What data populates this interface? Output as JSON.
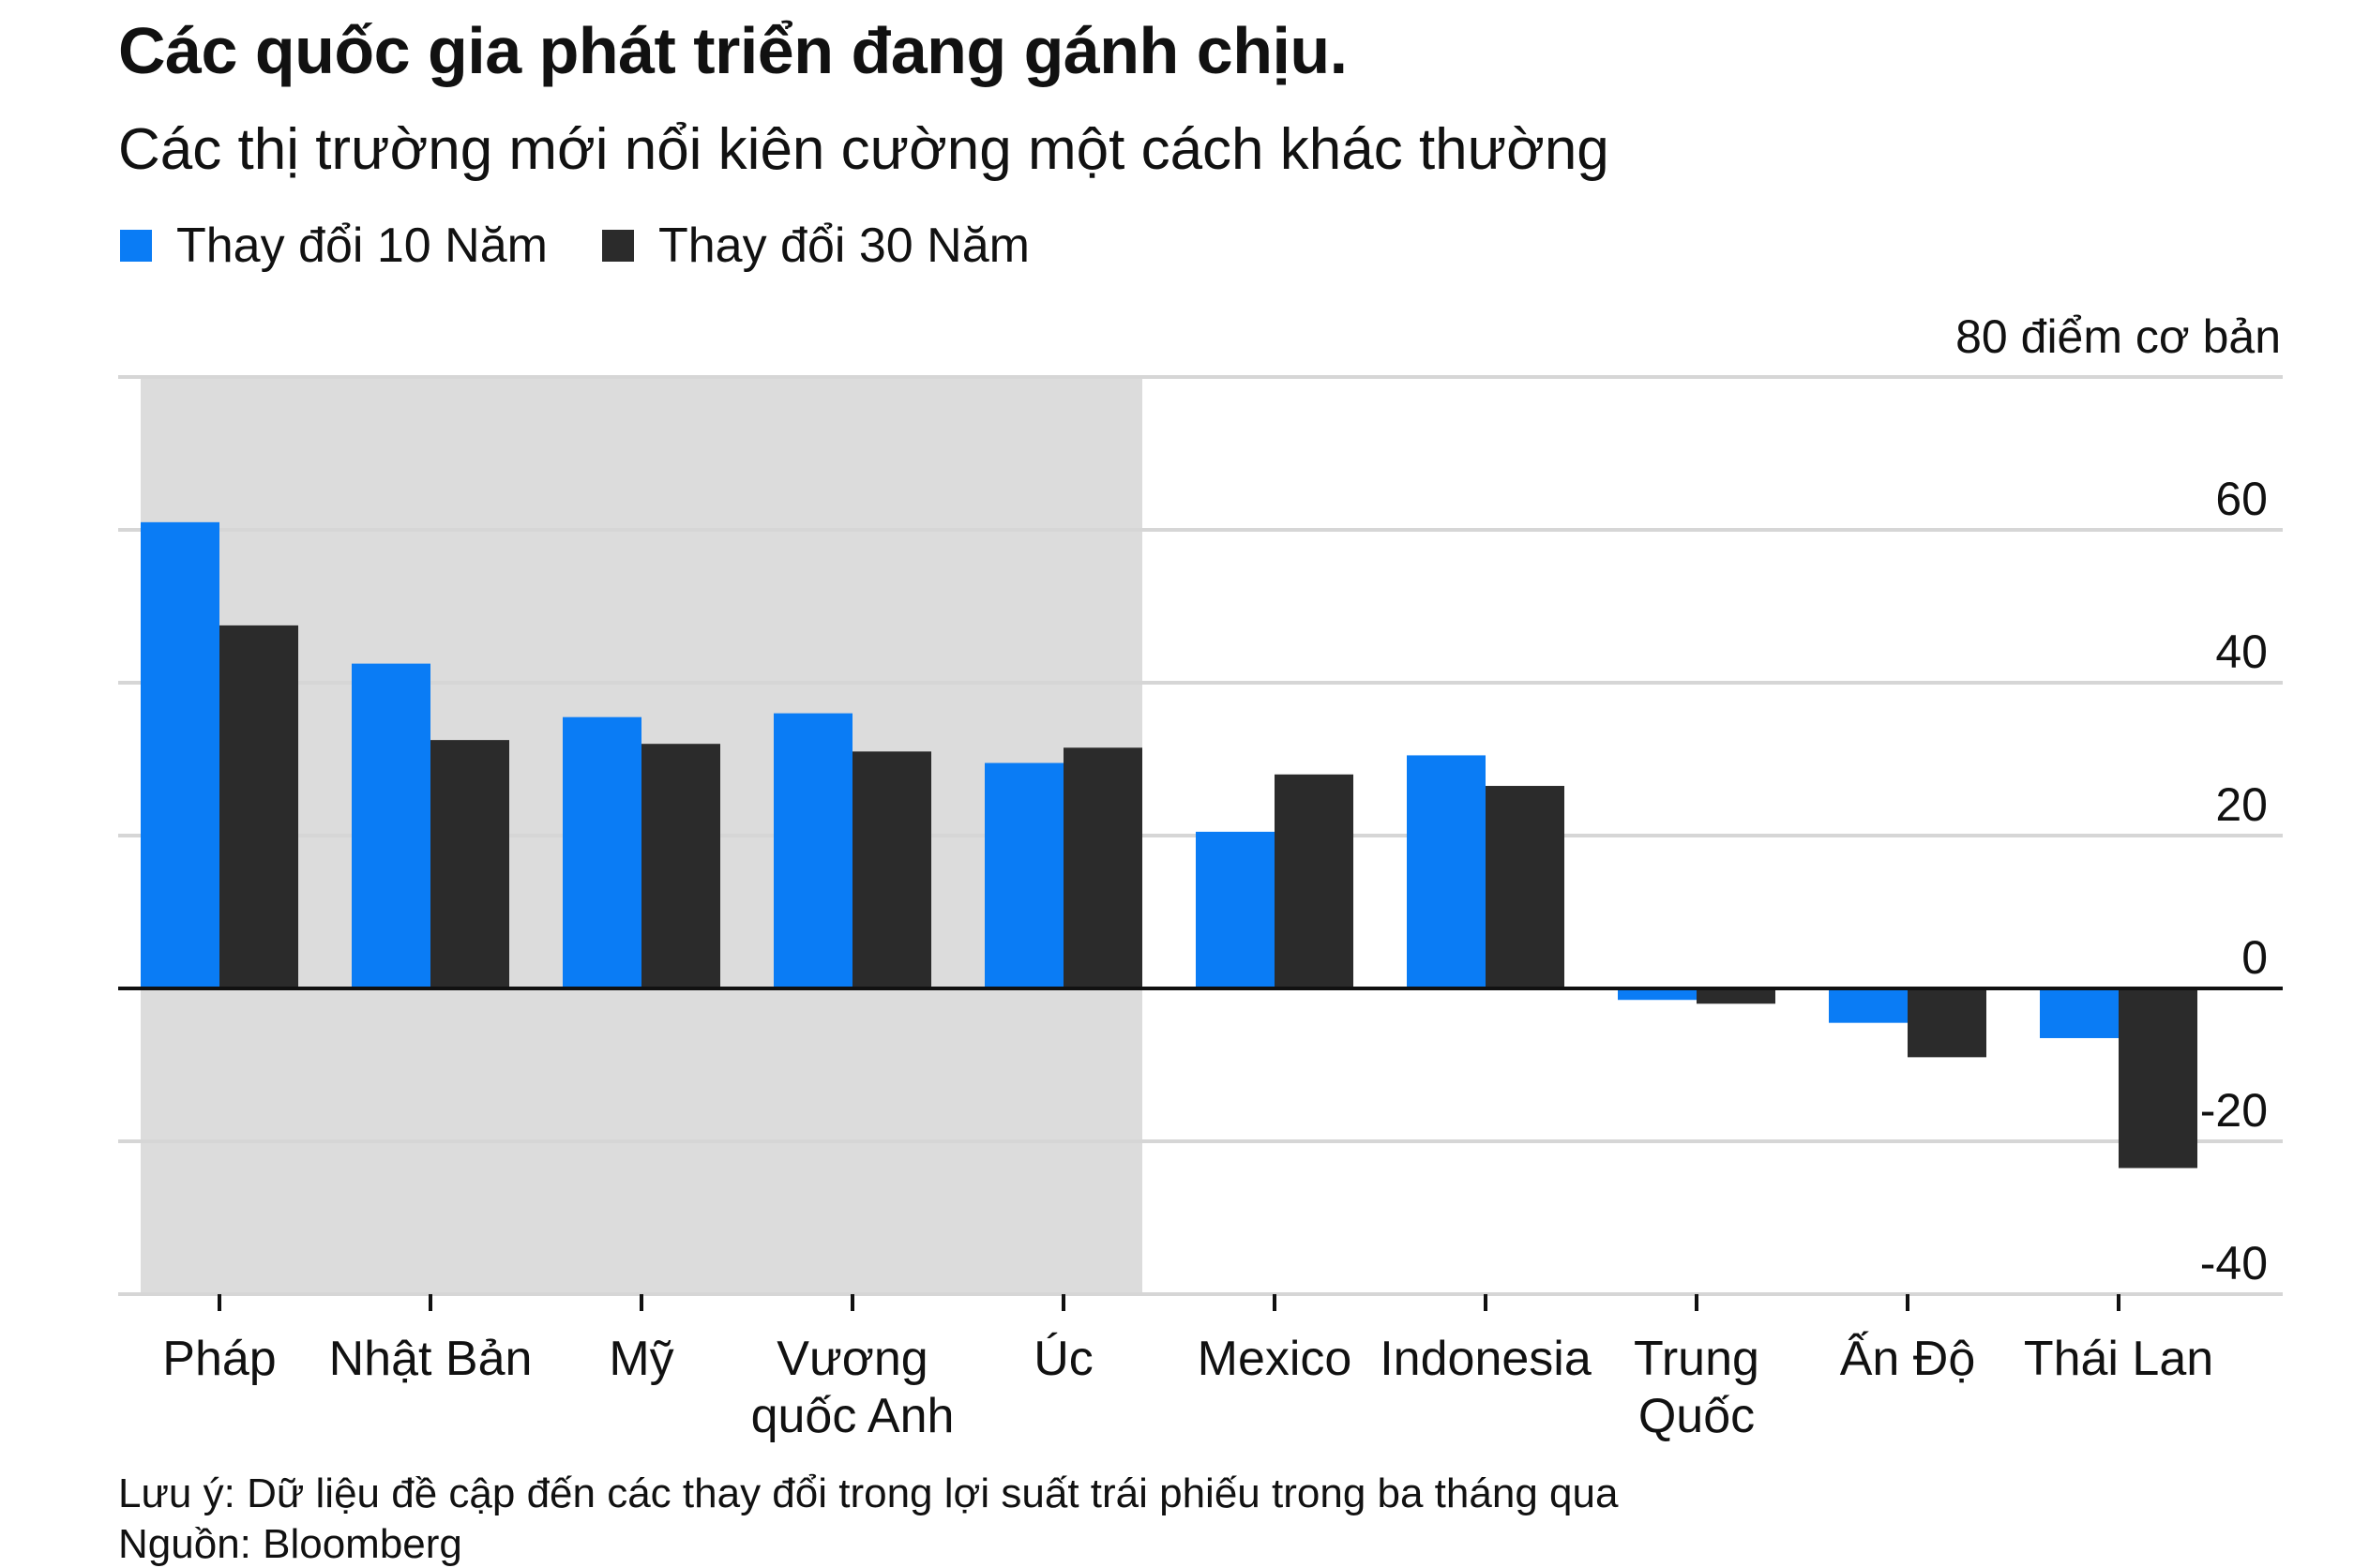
{
  "title": "Các quốc gia phát triển đang gánh chịu.",
  "subtitle": "Các thị trường mới nổi kiên cường một cách khác thường",
  "footer": {
    "note": "Lưu ý: Dữ liệu đề cập đến các thay đổi trong lợi suất trái phiếu trong ba tháng qua",
    "source": "Nguồn: Bloomberg"
  },
  "colors": {
    "series_10y": "#0a7cf5",
    "series_30y": "#2b2b2b",
    "shade": "#dcdcdc",
    "grid": "#d6d6d6",
    "axis": "#111111"
  },
  "chart_data": {
    "type": "bar",
    "unit_label": "80 điểm cơ bản",
    "categories": [
      "Pháp",
      "Nhật Bản",
      "Mỹ",
      "Vương quốc Anh",
      "Úc",
      "Mexico",
      "Indonesia",
      "Trung Quốc",
      "Ấn Độ",
      "Thái Lan"
    ],
    "category_lines": [
      [
        "Pháp"
      ],
      [
        "Nhật Bản"
      ],
      [
        "Mỹ"
      ],
      [
        "Vương",
        "quốc Anh"
      ],
      [
        "Úc"
      ],
      [
        "Mexico"
      ],
      [
        "Indonesia"
      ],
      [
        "Trung",
        "Quốc"
      ],
      [
        "Ấn Độ"
      ],
      [
        "Thái Lan"
      ]
    ],
    "series": [
      {
        "name": "Thay đổi 10 Năm",
        "values": [
          61,
          42.5,
          35.5,
          36,
          29.5,
          20.5,
          30.5,
          -1.5,
          -4.5,
          -6.5
        ]
      },
      {
        "name": "Thay đổi 30 Năm",
        "values": [
          47.5,
          32.5,
          32,
          31,
          31.5,
          28,
          26.5,
          -2,
          -9,
          -23.5
        ]
      }
    ],
    "y_ticks": [
      60,
      40,
      20,
      0,
      -20,
      -40
    ],
    "y_tick_labels": [
      "60",
      "40",
      "20",
      "0",
      "-20",
      "-40"
    ],
    "ylim": [
      -40,
      80
    ],
    "shaded_categories": [
      "Pháp",
      "Nhật Bản",
      "Mỹ",
      "Vương quốc Anh",
      "Úc"
    ],
    "legend_position": "top-left",
    "y_axis_position": "right",
    "grid": true
  }
}
